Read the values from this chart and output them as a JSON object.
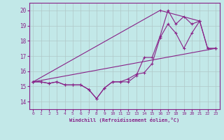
{
  "xlabel": "Windchill (Refroidissement éolien,°C)",
  "xlim": [
    -0.5,
    23.5
  ],
  "ylim": [
    13.5,
    20.5
  ],
  "yticks": [
    14,
    15,
    16,
    17,
    18,
    19,
    20
  ],
  "xticks": [
    0,
    1,
    2,
    3,
    4,
    5,
    6,
    7,
    8,
    9,
    10,
    11,
    12,
    13,
    14,
    15,
    16,
    17,
    18,
    19,
    20,
    21,
    22,
    23
  ],
  "bg_color": "#c2e8e8",
  "line_color": "#882288",
  "grid_color": "#b0c8c8",
  "lines": [
    {
      "x": [
        0,
        1,
        2,
        3,
        4,
        5,
        6,
        7,
        8,
        9,
        10,
        11,
        12,
        13,
        14,
        15,
        16,
        17,
        18,
        19,
        20,
        21,
        22,
        23
      ],
      "y": [
        15.3,
        15.3,
        15.2,
        15.3,
        15.1,
        15.1,
        15.1,
        14.8,
        14.2,
        14.9,
        15.3,
        15.3,
        15.3,
        15.7,
        16.9,
        16.9,
        18.3,
        20.0,
        19.1,
        19.6,
        19.1,
        19.3,
        17.5,
        17.5
      ]
    },
    {
      "x": [
        0,
        1,
        2,
        3,
        4,
        5,
        6,
        7,
        8,
        9,
        10,
        11,
        12,
        13,
        14,
        15,
        16,
        17,
        18,
        19,
        20,
        21,
        22,
        23
      ],
      "y": [
        15.3,
        15.3,
        15.2,
        15.3,
        15.1,
        15.1,
        15.1,
        14.8,
        14.2,
        14.9,
        15.3,
        15.3,
        15.5,
        15.8,
        15.9,
        16.5,
        18.2,
        19.1,
        18.5,
        17.5,
        18.5,
        19.3,
        17.5,
        17.5
      ]
    },
    {
      "x": [
        0,
        23
      ],
      "y": [
        15.3,
        17.5
      ]
    },
    {
      "comment": "triangle line: 0 -> 16 -> 21",
      "x": [
        0,
        16,
        21
      ],
      "y": [
        15.3,
        20.0,
        19.3
      ]
    }
  ]
}
